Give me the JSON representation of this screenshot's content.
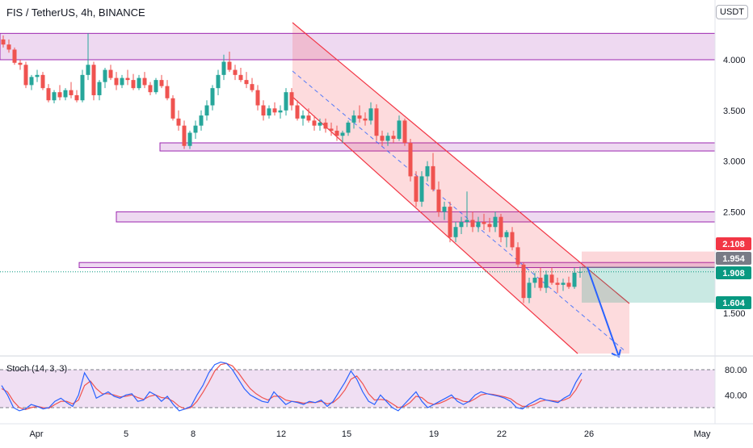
{
  "header": {
    "title": "FIS / TetherUS, 4h, BINANCE",
    "currency": "USDT"
  },
  "chart_data": {
    "type": "candlestick",
    "symbol": "FIS / TetherUS",
    "timeframe": "4h",
    "exchange": "BINANCE",
    "y_ticks": [
      "4.000",
      "3.500",
      "3.000",
      "2.500",
      "1.500"
    ],
    "y_tick_values": [
      4.0,
      3.5,
      3.0,
      2.5,
      1.5
    ],
    "x_ticks": [
      "Apr",
      "5",
      "8",
      "12",
      "15",
      "19",
      "22",
      "26",
      "May"
    ],
    "price_labels": [
      {
        "value": "2.108",
        "color": "#f23645"
      },
      {
        "value": "1.954",
        "color": "#787b86"
      },
      {
        "value": "1.908",
        "color": "#089981"
      },
      {
        "value": "1.604",
        "color": "#089981"
      }
    ],
    "zones": [
      {
        "from": 4.0,
        "to": 4.26,
        "start": "Mar 30"
      },
      {
        "from": 3.1,
        "to": 3.18,
        "start": "Apr 6"
      },
      {
        "from": 2.4,
        "to": 2.5,
        "start": "Apr 4"
      },
      {
        "from": 1.95,
        "to": 2.0,
        "start": "Apr 2"
      }
    ],
    "short_position": {
      "entry": 1.954,
      "stop": 2.108,
      "target": 1.604
    },
    "candles": [
      [
        4.2,
        4.24,
        4.12,
        4.15
      ],
      [
        4.15,
        4.2,
        4.07,
        4.1
      ],
      [
        4.1,
        4.12,
        3.95,
        3.97
      ],
      [
        3.97,
        4.0,
        3.9,
        3.95
      ],
      [
        3.95,
        3.98,
        3.72,
        3.75
      ],
      [
        3.75,
        3.85,
        3.7,
        3.83
      ],
      [
        3.83,
        3.9,
        3.78,
        3.85
      ],
      [
        3.85,
        3.88,
        3.7,
        3.72
      ],
      [
        3.72,
        3.76,
        3.58,
        3.6
      ],
      [
        3.6,
        3.7,
        3.57,
        3.68
      ],
      [
        3.68,
        3.75,
        3.6,
        3.63
      ],
      [
        3.63,
        3.72,
        3.6,
        3.7
      ],
      [
        3.7,
        3.78,
        3.62,
        3.65
      ],
      [
        3.65,
        3.7,
        3.58,
        3.6
      ],
      [
        3.6,
        3.9,
        3.58,
        3.85
      ],
      [
        3.85,
        4.26,
        3.8,
        3.95
      ],
      [
        3.95,
        3.98,
        3.6,
        3.65
      ],
      [
        3.65,
        3.8,
        3.6,
        3.78
      ],
      [
        3.78,
        3.92,
        3.72,
        3.9
      ],
      [
        3.9,
        3.95,
        3.8,
        3.82
      ],
      [
        3.82,
        3.88,
        3.7,
        3.75
      ],
      [
        3.75,
        3.85,
        3.72,
        3.82
      ],
      [
        3.82,
        3.9,
        3.75,
        3.8
      ],
      [
        3.8,
        3.86,
        3.7,
        3.72
      ],
      [
        3.72,
        3.85,
        3.7,
        3.82
      ],
      [
        3.82,
        3.88,
        3.72,
        3.75
      ],
      [
        3.75,
        3.78,
        3.65,
        3.68
      ],
      [
        3.68,
        3.82,
        3.66,
        3.8
      ],
      [
        3.8,
        3.85,
        3.72,
        3.74
      ],
      [
        3.74,
        3.8,
        3.6,
        3.62
      ],
      [
        3.62,
        3.65,
        3.4,
        3.42
      ],
      [
        3.42,
        3.5,
        3.3,
        3.35
      ],
      [
        3.35,
        3.4,
        3.12,
        3.15
      ],
      [
        3.15,
        3.3,
        3.12,
        3.28
      ],
      [
        3.28,
        3.4,
        3.22,
        3.35
      ],
      [
        3.35,
        3.5,
        3.3,
        3.45
      ],
      [
        3.45,
        3.6,
        3.4,
        3.55
      ],
      [
        3.55,
        3.75,
        3.5,
        3.72
      ],
      [
        3.72,
        3.9,
        3.65,
        3.85
      ],
      [
        3.85,
        4.05,
        3.8,
        3.98
      ],
      [
        3.98,
        4.08,
        3.88,
        3.9
      ],
      [
        3.9,
        3.95,
        3.8,
        3.85
      ],
      [
        3.85,
        3.92,
        3.78,
        3.8
      ],
      [
        3.8,
        3.88,
        3.72,
        3.76
      ],
      [
        3.76,
        3.82,
        3.68,
        3.7
      ],
      [
        3.7,
        3.75,
        3.5,
        3.55
      ],
      [
        3.55,
        3.6,
        3.4,
        3.45
      ],
      [
        3.45,
        3.55,
        3.42,
        3.52
      ],
      [
        3.52,
        3.58,
        3.45,
        3.48
      ],
      [
        3.48,
        3.55,
        3.42,
        3.5
      ],
      [
        3.5,
        3.72,
        3.45,
        3.68
      ],
      [
        3.68,
        3.72,
        3.5,
        3.55
      ],
      [
        3.55,
        3.6,
        3.4,
        3.42
      ],
      [
        3.42,
        3.5,
        3.35,
        3.45
      ],
      [
        3.45,
        3.52,
        3.38,
        3.4
      ],
      [
        3.4,
        3.45,
        3.3,
        3.35
      ],
      [
        3.35,
        3.42,
        3.3,
        3.38
      ],
      [
        3.38,
        3.42,
        3.28,
        3.32
      ],
      [
        3.32,
        3.38,
        3.25,
        3.3
      ],
      [
        3.3,
        3.35,
        3.2,
        3.25
      ],
      [
        3.25,
        3.3,
        3.18,
        3.28
      ],
      [
        3.28,
        3.4,
        3.25,
        3.38
      ],
      [
        3.38,
        3.5,
        3.32,
        3.45
      ],
      [
        3.45,
        3.55,
        3.38,
        3.42
      ],
      [
        3.42,
        3.48,
        3.35,
        3.4
      ],
      [
        3.4,
        3.58,
        3.36,
        3.52
      ],
      [
        3.52,
        3.56,
        3.2,
        3.25
      ],
      [
        3.25,
        3.3,
        3.15,
        3.2
      ],
      [
        3.2,
        3.28,
        3.15,
        3.25
      ],
      [
        3.25,
        3.3,
        3.18,
        3.22
      ],
      [
        3.22,
        3.45,
        3.2,
        3.4
      ],
      [
        3.4,
        3.42,
        3.15,
        3.18
      ],
      [
        3.18,
        3.22,
        2.8,
        2.85
      ],
      [
        2.85,
        2.9,
        2.55,
        2.6
      ],
      [
        2.6,
        2.9,
        2.55,
        2.85
      ],
      [
        2.85,
        3.0,
        2.8,
        2.95
      ],
      [
        2.95,
        3.08,
        2.7,
        2.72
      ],
      [
        2.72,
        2.8,
        2.45,
        2.5
      ],
      [
        2.5,
        2.6,
        2.42,
        2.55
      ],
      [
        2.55,
        2.6,
        2.2,
        2.25
      ],
      [
        2.25,
        2.4,
        2.2,
        2.35
      ],
      [
        2.35,
        2.45,
        2.28,
        2.4
      ],
      [
        2.4,
        2.7,
        2.35,
        2.42
      ],
      [
        2.42,
        2.5,
        2.3,
        2.35
      ],
      [
        2.35,
        2.45,
        2.3,
        2.4
      ],
      [
        2.4,
        2.48,
        2.32,
        2.38
      ],
      [
        2.38,
        2.44,
        2.3,
        2.35
      ],
      [
        2.35,
        2.5,
        2.3,
        2.45
      ],
      [
        2.45,
        2.48,
        2.2,
        2.25
      ],
      [
        2.25,
        2.32,
        2.15,
        2.3
      ],
      [
        2.3,
        2.35,
        2.12,
        2.15
      ],
      [
        2.15,
        2.2,
        1.95,
        1.98
      ],
      [
        1.98,
        2.0,
        1.6,
        1.65
      ],
      [
        1.65,
        1.85,
        1.6,
        1.8
      ],
      [
        1.8,
        1.9,
        1.75,
        1.85
      ],
      [
        1.85,
        1.95,
        1.72,
        1.75
      ],
      [
        1.75,
        1.92,
        1.7,
        1.88
      ],
      [
        1.88,
        1.95,
        1.78,
        1.8
      ],
      [
        1.8,
        1.85,
        1.7,
        1.78
      ],
      [
        1.78,
        1.84,
        1.72,
        1.8
      ],
      [
        1.8,
        1.86,
        1.74,
        1.76
      ],
      [
        1.76,
        1.95,
        1.74,
        1.9
      ],
      [
        1.9,
        1.96,
        1.85,
        1.908
      ]
    ],
    "projection": {
      "from": 1.954,
      "to": 1.04
    },
    "stochastic": {
      "title": "Stoch (14, 3, 3)",
      "y_ticks": [
        "80.00",
        "40.00"
      ],
      "upper_band": 80,
      "lower_band": 20,
      "k": [
        55,
        40,
        20,
        15,
        18,
        25,
        22,
        18,
        20,
        30,
        35,
        28,
        22,
        40,
        75,
        60,
        35,
        40,
        45,
        38,
        35,
        40,
        42,
        30,
        32,
        45,
        40,
        30,
        38,
        25,
        15,
        18,
        22,
        40,
        55,
        75,
        88,
        92,
        90,
        80,
        65,
        50,
        40,
        35,
        30,
        28,
        45,
        35,
        25,
        30,
        28,
        25,
        30,
        28,
        32,
        22,
        30,
        45,
        60,
        78,
        65,
        45,
        30,
        25,
        40,
        30,
        20,
        15,
        25,
        35,
        45,
        30,
        20,
        25,
        30,
        35,
        40,
        30,
        25,
        30,
        40,
        45,
        42,
        40,
        38,
        35,
        30,
        20,
        18,
        25,
        30,
        35,
        32,
        30,
        28,
        35,
        40,
        60,
        75
      ],
      "d": [
        50,
        45,
        30,
        20,
        17,
        20,
        22,
        20,
        19,
        25,
        30,
        30,
        26,
        32,
        55,
        62,
        50,
        42,
        42,
        40,
        37,
        38,
        40,
        36,
        33,
        38,
        40,
        36,
        35,
        30,
        22,
        18,
        20,
        30,
        44,
        60,
        78,
        88,
        90,
        86,
        75,
        62,
        50,
        42,
        36,
        32,
        38,
        38,
        32,
        30,
        29,
        27,
        28,
        28,
        30,
        26,
        28,
        36,
        48,
        65,
        70,
        58,
        42,
        32,
        33,
        32,
        26,
        20,
        22,
        28,
        38,
        36,
        28,
        25,
        27,
        31,
        36,
        34,
        30,
        29,
        34,
        40,
        42,
        41,
        39,
        37,
        34,
        27,
        22,
        22,
        25,
        30,
        32,
        31,
        30,
        32,
        36,
        48,
        65
      ]
    }
  }
}
